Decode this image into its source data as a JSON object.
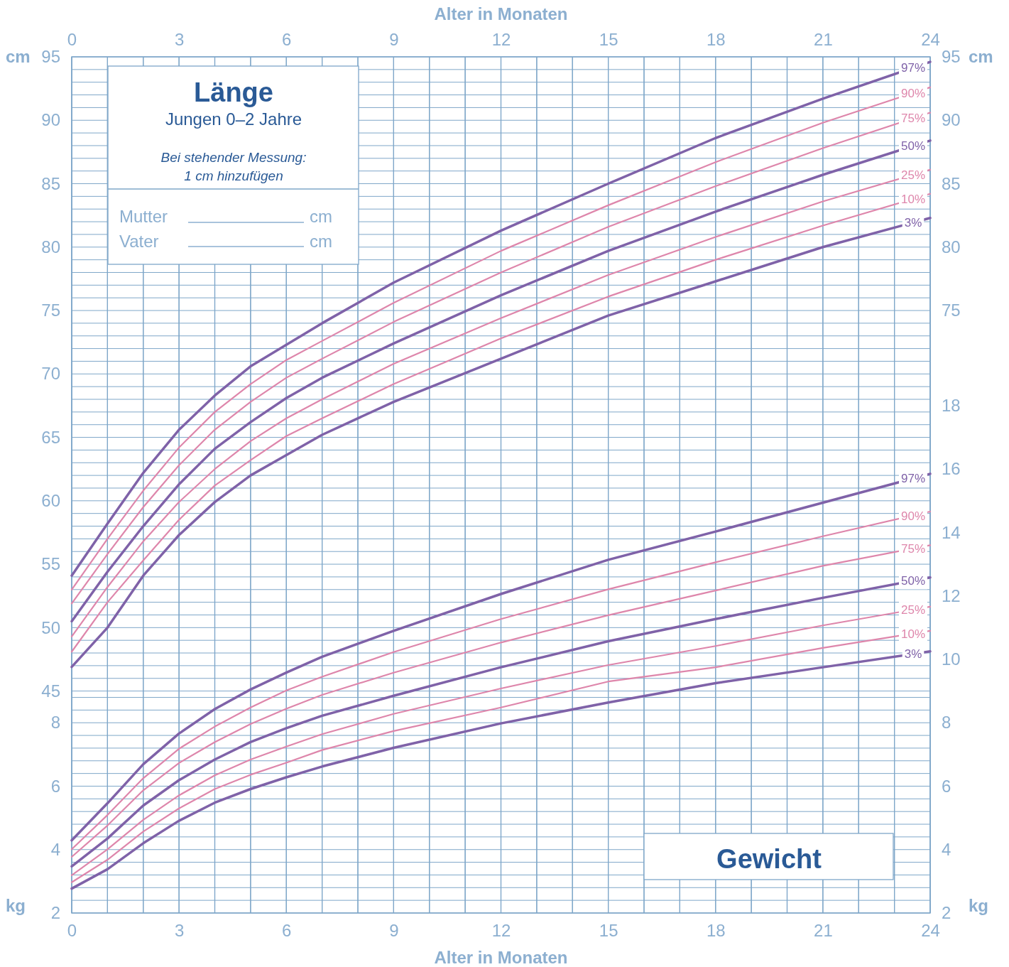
{
  "chart_data": [
    {
      "type": "line",
      "title": "Länge",
      "subtitle": "Jungen 0–2 Jahre",
      "annotations": [
        "Bei stehender Messung:",
        "1 cm hinzufügen",
        "Mutter",
        "cm",
        "Vater",
        "cm"
      ],
      "x2label": "Alter in Monaten",
      "ylabel": "cm",
      "y2label": "cm",
      "tick_labels": "y",
      "xlim": [
        0,
        24
      ],
      "xticks": [
        0,
        {
          "value": 1,
          "label": null
        },
        {
          "value": 2,
          "label": null
        },
        3,
        {
          "value": 4,
          "label": null
        },
        {
          "value": 5,
          "label": null
        },
        6,
        {
          "value": 7,
          "label": null
        },
        {
          "value": 8,
          "label": null
        },
        9,
        {
          "value": 10,
          "label": null
        },
        {
          "value": 11,
          "label": null
        },
        12,
        {
          "value": 13,
          "label": null
        },
        {
          "value": 14,
          "label": null
        },
        15,
        {
          "value": 16,
          "label": null
        },
        {
          "value": 17,
          "label": null
        },
        18,
        {
          "value": 19,
          "label": null
        },
        {
          "value": 20,
          "label": null
        },
        21,
        {
          "value": 22,
          "label": null
        },
        {
          "value": 23,
          "label": null
        },
        24
      ],
      "x2lim": [
        0,
        24
      ],
      "x2ticks": [
        0,
        3,
        6,
        9,
        12,
        15,
        18,
        21,
        24
      ],
      "ylim": [
        27.5,
        95
      ],
      "yticks": [
        45,
        {
          "value": 46,
          "label": null
        },
        {
          "value": 47,
          "label": null
        },
        {
          "value": 48,
          "label": null
        },
        {
          "value": 49,
          "label": null
        },
        50,
        {
          "value": 51,
          "label": null
        },
        {
          "value": 52,
          "label": null
        },
        {
          "value": 53,
          "label": null
        },
        {
          "value": 54,
          "label": null
        },
        55,
        {
          "value": 56,
          "label": null
        },
        {
          "value": 57,
          "label": null
        },
        {
          "value": 58,
          "label": null
        },
        {
          "value": 59,
          "label": null
        },
        60,
        {
          "value": 61,
          "label": null
        },
        {
          "value": 62,
          "label": null
        },
        {
          "value": 63,
          "label": null
        },
        {
          "value": 64,
          "label": null
        },
        65,
        {
          "value": 66,
          "label": null
        },
        {
          "value": 67,
          "label": null
        },
        {
          "value": 68,
          "label": null
        },
        {
          "value": 69,
          "label": null
        },
        70,
        {
          "value": 71,
          "label": null
        },
        {
          "value": 72,
          "label": null
        },
        {
          "value": 73,
          "label": null
        },
        {
          "value": 74,
          "label": null
        },
        75,
        {
          "value": 76,
          "label": null
        },
        {
          "value": 77,
          "label": null
        },
        {
          "value": 78,
          "label": null
        },
        {
          "value": 79,
          "label": null
        },
        80,
        {
          "value": 81,
          "label": null
        },
        {
          "value": 82,
          "label": null
        },
        {
          "value": 83,
          "label": null
        },
        {
          "value": 84,
          "label": null
        },
        85,
        {
          "value": 86,
          "label": null
        },
        {
          "value": 87,
          "label": null
        },
        {
          "value": 88,
          "label": null
        },
        {
          "value": 89,
          "label": null
        },
        90,
        {
          "value": 91,
          "label": null
        },
        {
          "value": 92,
          "label": null
        },
        {
          "value": 93,
          "label": null
        },
        {
          "value": 94,
          "label": null
        },
        95
      ],
      "y2lim": [
        27.5,
        95
      ],
      "y2ticks": [
        75,
        80,
        85,
        90,
        95
      ],
      "grid": true,
      "marker": "none",
      "line_style": "solid",
      "x": [
        0,
        1,
        2,
        3,
        4,
        5,
        6,
        7,
        9,
        12,
        15,
        18,
        21,
        24
      ],
      "series": [
        {
          "name": "97%",
          "color": "#7f62a8",
          "values": [
            54.1,
            58.2,
            62.2,
            65.6,
            68.3,
            70.6,
            72.3,
            74.0,
            77.2,
            81.3,
            85.0,
            88.6,
            91.7,
            94.6
          ]
        },
        {
          "name": "90%",
          "color": "#de86ab",
          "values": [
            53.0,
            57.0,
            60.8,
            64.2,
            67.0,
            69.2,
            71.1,
            72.6,
            75.6,
            79.7,
            83.3,
            86.7,
            89.8,
            92.6
          ]
        },
        {
          "name": "75%",
          "color": "#de86ab",
          "values": [
            51.9,
            55.8,
            59.5,
            62.8,
            65.6,
            67.8,
            69.7,
            71.2,
            74.1,
            78.0,
            81.6,
            84.8,
            87.8,
            90.6
          ]
        },
        {
          "name": "50%",
          "color": "#7f62a8",
          "values": [
            50.5,
            54.4,
            58.0,
            61.3,
            64.1,
            66.2,
            68.1,
            69.7,
            72.4,
            76.2,
            79.7,
            82.8,
            85.7,
            88.4
          ]
        },
        {
          "name": "25%",
          "color": "#de86ab",
          "values": [
            49.3,
            53.2,
            56.8,
            59.9,
            62.5,
            64.7,
            66.5,
            68.0,
            70.8,
            74.4,
            77.8,
            80.8,
            83.6,
            86.1
          ]
        },
        {
          "name": "10%",
          "color": "#de86ab",
          "values": [
            48.1,
            52.0,
            55.3,
            58.5,
            61.2,
            63.2,
            65.1,
            66.5,
            69.2,
            72.8,
            76.1,
            79.0,
            81.7,
            84.2
          ]
        },
        {
          "name": "3%",
          "color": "#7f62a8",
          "values": [
            46.9,
            50.0,
            54.1,
            57.3,
            59.9,
            62.0,
            63.6,
            65.2,
            67.8,
            71.2,
            74.6,
            77.3,
            80.0,
            82.3
          ]
        }
      ]
    },
    {
      "type": "line",
      "title": "Gewicht",
      "xlabel": "Alter in Monaten",
      "ylabel": "kg",
      "y2label": "kg",
      "xlim": [
        0,
        24
      ],
      "xticks": [
        0,
        {
          "value": 1,
          "label": null
        },
        {
          "value": 2,
          "label": null
        },
        3,
        {
          "value": 4,
          "label": null
        },
        {
          "value": 5,
          "label": null
        },
        6,
        {
          "value": 7,
          "label": null
        },
        {
          "value": 8,
          "label": null
        },
        9,
        {
          "value": 10,
          "label": null
        },
        {
          "value": 11,
          "label": null
        },
        12,
        {
          "value": 13,
          "label": null
        },
        {
          "value": 14,
          "label": null
        },
        15,
        {
          "value": 16,
          "label": null
        },
        {
          "value": 17,
          "label": null
        },
        18,
        {
          "value": 19,
          "label": null
        },
        {
          "value": 20,
          "label": null
        },
        21,
        {
          "value": 22,
          "label": null
        },
        {
          "value": 23,
          "label": null
        },
        24
      ],
      "ylim": [
        2,
        29
      ],
      "yticks": [
        2,
        {
          "value": 2.4,
          "label": null
        },
        {
          "value": 2.8,
          "label": null
        },
        {
          "value": 3.2,
          "label": null
        },
        {
          "value": 3.6,
          "label": null
        },
        4,
        {
          "value": 4.4,
          "label": null
        },
        {
          "value": 4.8,
          "label": null
        },
        {
          "value": 5.2,
          "label": null
        },
        {
          "value": 5.6,
          "label": null
        },
        6,
        {
          "value": 6.4,
          "label": null
        },
        {
          "value": 6.8,
          "label": null
        },
        {
          "value": 7.2,
          "label": null
        },
        {
          "value": 7.6,
          "label": null
        },
        8,
        {
          "value": 8.4,
          "label": null
        },
        {
          "value": 8.8,
          "label": null
        }
      ],
      "y2lim": [
        2,
        29
      ],
      "y2ticks": [
        2,
        4,
        6,
        8,
        10,
        12,
        14,
        16,
        18
      ],
      "grid": true,
      "marker": "none",
      "line_style": "solid",
      "x": [
        0,
        1,
        2,
        3,
        4,
        5,
        6,
        7,
        9,
        12,
        15,
        18,
        21,
        24
      ],
      "series": [
        {
          "name": "97%",
          "color": "#7f62a8",
          "values": [
            4.29,
            5.46,
            6.69,
            7.66,
            8.43,
            9.05,
            9.58,
            10.08,
            10.9,
            12.06,
            13.14,
            14.03,
            14.94,
            15.85
          ]
        },
        {
          "name": "90%",
          "color": "#de86ab",
          "values": [
            4.01,
            5.09,
            6.25,
            7.18,
            7.88,
            8.48,
            9.02,
            9.45,
            10.23,
            11.27,
            12.21,
            13.06,
            13.88,
            14.66
          ]
        },
        {
          "name": "75%",
          "color": "#de86ab",
          "values": [
            3.77,
            4.76,
            5.87,
            6.73,
            7.39,
            7.96,
            8.44,
            8.88,
            9.58,
            10.53,
            11.39,
            12.17,
            12.95,
            13.6
          ]
        },
        {
          "name": "50%",
          "color": "#7f62a8",
          "values": [
            3.47,
            4.35,
            5.39,
            6.19,
            6.84,
            7.39,
            7.83,
            8.22,
            8.85,
            9.75,
            10.57,
            11.27,
            11.94,
            12.58
          ]
        },
        {
          "name": "25%",
          "color": "#de86ab",
          "values": [
            3.19,
            4.01,
            4.94,
            5.71,
            6.34,
            6.84,
            7.25,
            7.64,
            8.28,
            9.08,
            9.82,
            10.42,
            11.07,
            11.66
          ]
        },
        {
          "name": "10%",
          "color": "#de86ab",
          "values": [
            2.97,
            3.68,
            4.57,
            5.3,
            5.91,
            6.36,
            6.74,
            7.14,
            7.74,
            8.48,
            9.3,
            9.75,
            10.36,
            10.9
          ]
        },
        {
          "name": "3%",
          "color": "#7f62a8",
          "values": [
            2.77,
            3.38,
            4.2,
            4.91,
            5.48,
            5.91,
            6.28,
            6.62,
            7.21,
            7.98,
            8.64,
            9.25,
            9.75,
            10.25
          ]
        }
      ]
    }
  ]
}
